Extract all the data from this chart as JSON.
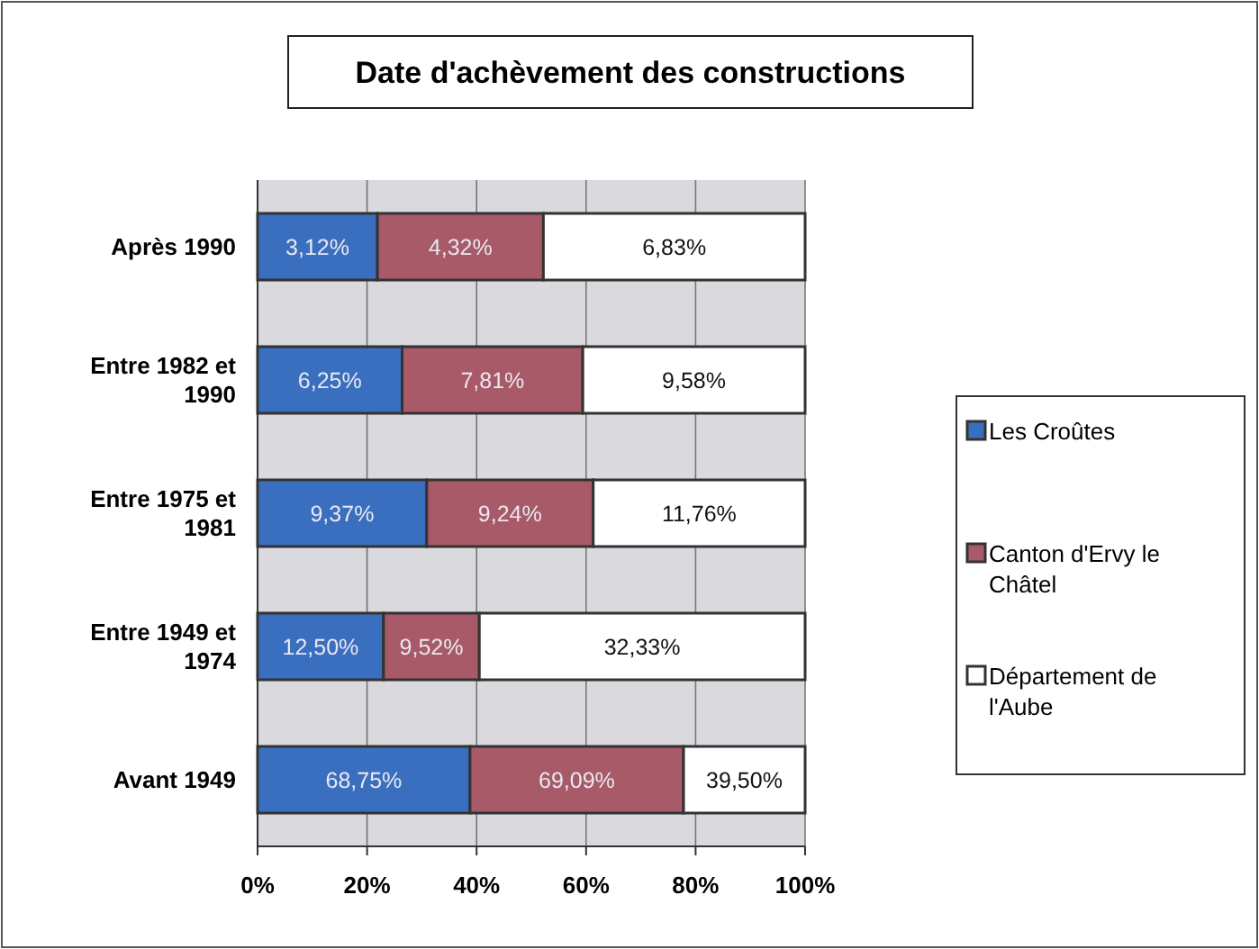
{
  "chart_data": {
    "type": "bar",
    "orientation": "horizontal",
    "stacked": true,
    "title": "Date d'achèvement des constructions",
    "categories": [
      "Après 1990",
      "Entre 1982 et 1990",
      "Entre 1975 et 1981",
      "Entre 1949 et 1974",
      "Avant 1949"
    ],
    "series": [
      {
        "name": "Les Croûtes",
        "color": "#3a6fc0",
        "values": [
          21.9,
          26.4,
          30.9,
          23.0,
          38.8
        ]
      },
      {
        "name": "Canton d'Ervy le Châtel",
        "color": "#a85a68",
        "values": [
          30.3,
          33.0,
          30.4,
          17.5,
          39.0
        ]
      },
      {
        "name": "Département de l'Aube",
        "color": "#ffffff",
        "values": [
          47.8,
          40.6,
          38.7,
          59.5,
          22.2
        ]
      }
    ],
    "annotations": [
      "3,12%",
      "4,32%",
      "6,83%",
      "6,25%",
      "7,81%",
      "9,58%",
      "9,37%",
      "9,24%",
      "11,76%",
      "12,50%",
      "9,52%",
      "32,33%",
      "68,75%",
      "69,09%",
      "39,50%"
    ],
    "xlim": [
      0,
      100
    ],
    "xticks": [
      {
        "value": 0,
        "label": "0%"
      },
      {
        "value": 20,
        "label": "20%"
      },
      {
        "value": 40,
        "label": "40%"
      },
      {
        "value": 60,
        "label": "60%"
      },
      {
        "value": 80,
        "label": "80%"
      },
      {
        "value": 100,
        "label": "100%"
      }
    ],
    "grid": "x",
    "legend": "right"
  }
}
